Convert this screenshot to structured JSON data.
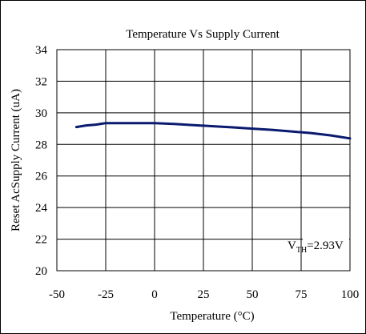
{
  "chart_data": {
    "type": "line",
    "title": "Temperature Vs Supply Current",
    "xlabel": "Temperature (°C)",
    "ylabel": "Reset AcSupply Current (uA)",
    "xlim": [
      -50,
      100
    ],
    "ylim": [
      20,
      34
    ],
    "xticks": [
      -50,
      -25,
      0,
      25,
      50,
      75,
      100
    ],
    "yticks": [
      20,
      22,
      24,
      26,
      28,
      30,
      32,
      34
    ],
    "grid": true,
    "legend": "none",
    "annotation": {
      "base": "V",
      "sub": "TH",
      "value": "=2.93V"
    },
    "series": [
      {
        "color": "#0a1a6e",
        "x": [
          -40,
          -35,
          -30,
          -25,
          -20,
          -10,
          0,
          10,
          20,
          30,
          40,
          50,
          60,
          70,
          80,
          90,
          100
        ],
        "y": [
          29.1,
          29.2,
          29.25,
          29.35,
          29.35,
          29.35,
          29.35,
          29.3,
          29.22,
          29.15,
          29.08,
          29.0,
          28.92,
          28.82,
          28.72,
          28.57,
          28.38
        ]
      }
    ]
  },
  "colors": {
    "axis": "#000000",
    "grid": "#000000",
    "series": "#0a1a6e"
  }
}
